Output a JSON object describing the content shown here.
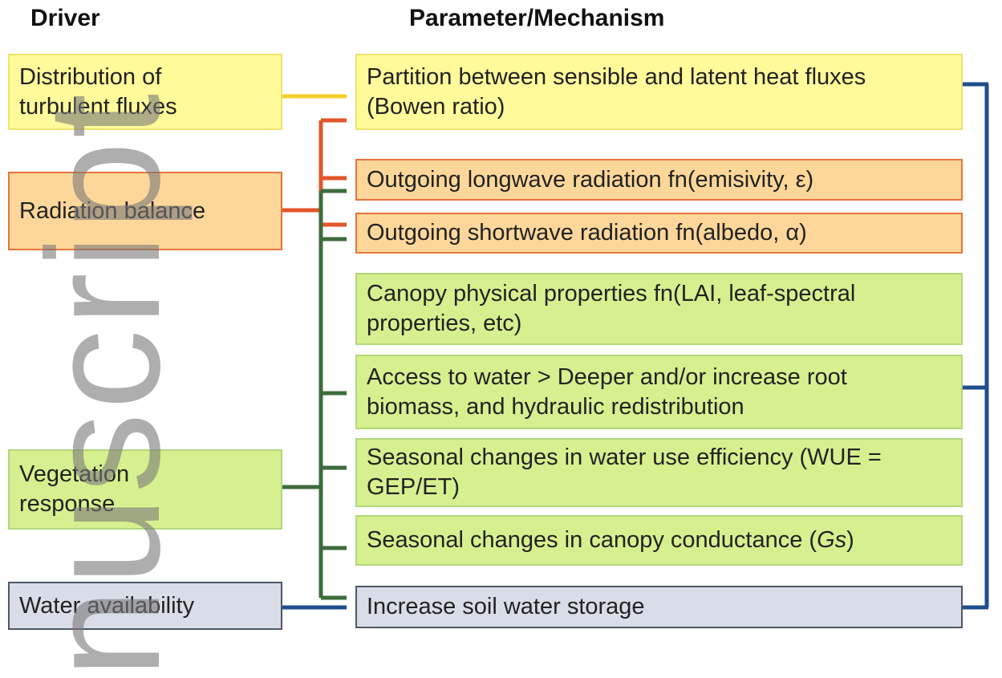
{
  "headers": {
    "driver": "Driver",
    "mechanism": "Parameter/Mechanism"
  },
  "drivers": [
    {
      "lines": [
        "Distribution of",
        "turbulent fluxes"
      ]
    },
    {
      "lines": [
        "Radiation balance"
      ]
    },
    {
      "lines": [
        "Vegetation",
        "response"
      ]
    },
    {
      "lines": [
        "Water availability"
      ]
    }
  ],
  "mechanisms": [
    {
      "lines": [
        "Partition between sensible and latent heat fluxes",
        "(Bowen ratio)"
      ]
    },
    {
      "lines": [
        "Outgoing longwave radiation fn(emisivity, ε)"
      ]
    },
    {
      "lines": [
        "Outgoing shortwave radiation fn(albedo, α)"
      ]
    },
    {
      "lines": [
        "Canopy physical properties fn(LAI, leaf-spectral",
        "properties, etc)"
      ]
    },
    {
      "lines": [
        "Access to water > Deeper and/or increase root",
        "biomass, and hydraulic redistribution"
      ]
    },
    {
      "lines": [
        "Seasonal changes in water use efficiency (WUE =",
        "GEP/ET)"
      ]
    },
    {
      "text": "Seasonal changes in canopy conductance (",
      "italic": "Gs",
      "text_end": ")"
    },
    {
      "lines": [
        "Increase soil water storage"
      ]
    }
  ],
  "watermark": "nuscript"
}
